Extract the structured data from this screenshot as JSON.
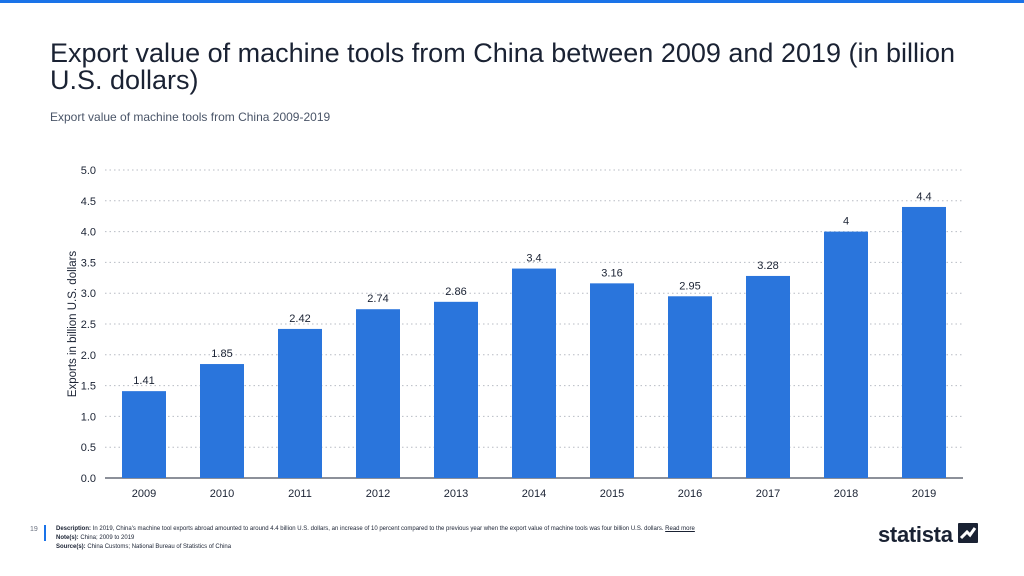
{
  "page": {
    "title": "Export value of machine tools from China between 2009 and 2019 (in billion U.S. dollars)",
    "subtitle": "Export value of machine tools from China 2009-2019",
    "page_number": "19"
  },
  "footer": {
    "description_label": "Description:",
    "description": "In 2019, China's machine tool exports abroad amounted to around 4.4 billion U.S. dollars, an increase of 10 percent compared to the previous year when the export value of machine tools was four billion U.S. dollars.",
    "read_more": "Read more",
    "notes_label": "Note(s):",
    "notes": "China; 2009 to 2019",
    "source_label": "Source(s):",
    "source": "China Customs; National Bureau of Statistics of China",
    "brand": "statista"
  },
  "colors": {
    "bar": "#2a75dc",
    "accent": "#1a73e8",
    "grid": "#b8bcc4",
    "text": "#1a2233"
  },
  "chart_data": {
    "type": "bar",
    "categories": [
      "2009",
      "2010",
      "2011",
      "2012",
      "2013",
      "2014",
      "2015",
      "2016",
      "2017",
      "2018",
      "2019"
    ],
    "values": [
      1.41,
      1.85,
      2.42,
      2.74,
      2.86,
      3.4,
      3.16,
      2.95,
      3.28,
      4,
      4.4
    ],
    "value_labels": [
      "1.41",
      "1.85",
      "2.42",
      "2.74",
      "2.86",
      "3.4",
      "3.16",
      "2.95",
      "3.28",
      "4",
      "4.4"
    ],
    "ylabel": "Exports in billion U.S. dollars",
    "xlabel": "",
    "ylim": [
      0,
      5
    ],
    "yticks": [
      "0.0",
      "0.5",
      "1.0",
      "1.5",
      "2.0",
      "2.5",
      "3.0",
      "3.5",
      "4.0",
      "4.5",
      "5.0"
    ],
    "grid": true,
    "legend": "none"
  }
}
